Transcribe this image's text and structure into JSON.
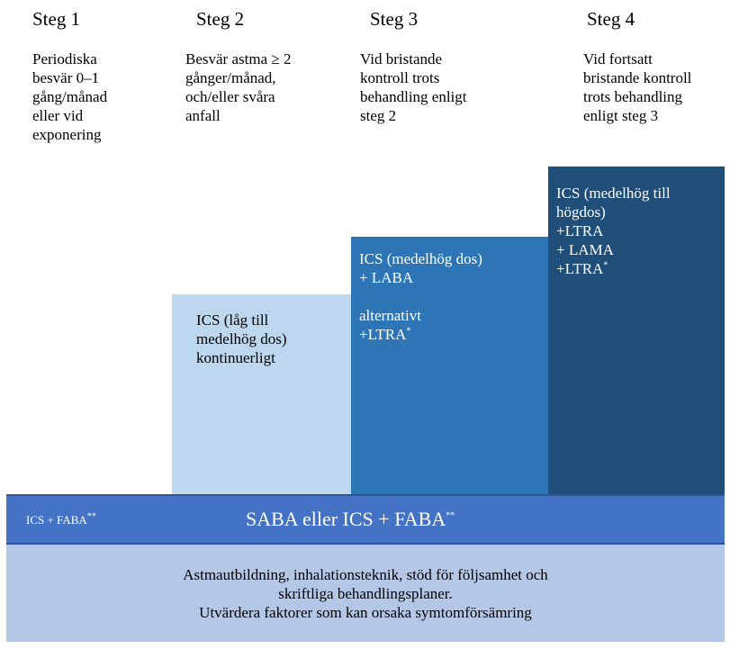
{
  "colors": {
    "step2": "#bdd7ee",
    "step3": "#2e75b6",
    "step4": "#1f4e79",
    "band": "#4472c4",
    "band_border": "#2f5597",
    "base": "#b4c7e7"
  },
  "steps": [
    {
      "title": "Steg 1",
      "description": "Periodiska\nbesvär 0–1\ngång/månad\neller vid\nexponering"
    },
    {
      "title": "Steg 2",
      "description": "Besvär astma ≥ 2\ngånger/månad,\noch/eller svåra\nanfall"
    },
    {
      "title": "Steg 3",
      "description": "Vid bristande\nkontroll trots\nbehandling enligt\nsteg 2"
    },
    {
      "title": "Steg 4",
      "description": "Vid fortsatt\nbristande kontroll\ntrots behandling\nenligt steg 3"
    }
  ],
  "blocks": {
    "step2": {
      "text": "ICS (låg till\nmedelhög dos)\nkontinuerligt"
    },
    "step3": {
      "text": "ICS (medelhög dos)\n+ LABA",
      "alt_text": "alternativt\n+LTRA",
      "alt_sup": "*"
    },
    "step4": {
      "text": "ICS (medelhög till\nhögdos)\n+LTRA\n+ LAMA\n+LTRA",
      "sup": "*"
    }
  },
  "band": {
    "left_text": "ICS + FABA",
    "left_sup": "**",
    "main_text": "SABA eller ICS + FABA",
    "main_sup": "**"
  },
  "base": {
    "lines": [
      "Astmautbildning, inhalationsteknik, stöd för följsamhet och",
      "skriftliga behandlingsplaner.",
      "Utvärdera faktorer som kan orsaka symtomförsämring"
    ]
  }
}
